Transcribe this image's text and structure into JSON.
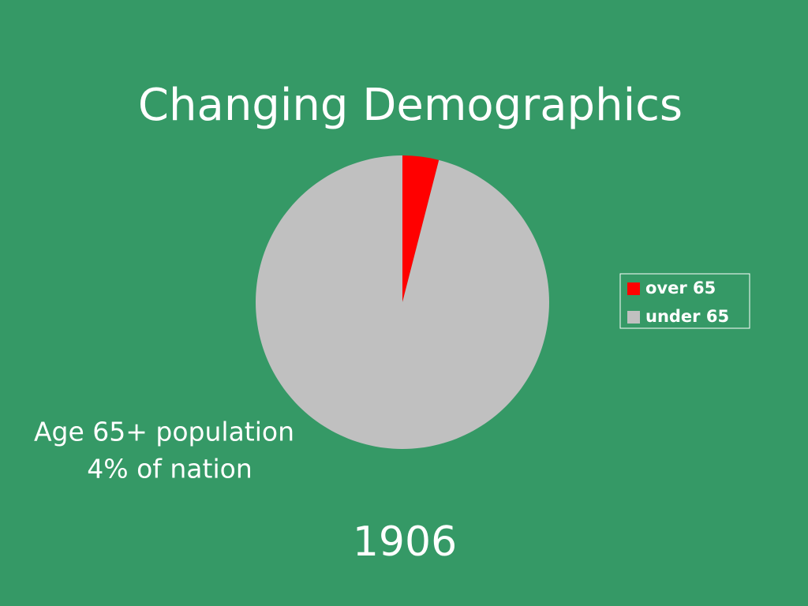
{
  "chart_data": {
    "type": "pie",
    "title": "Changing Demographics",
    "categories": [
      "over 65",
      "under 65"
    ],
    "values": [
      4,
      96
    ],
    "colors": [
      "#ff0000",
      "#c0c0c0"
    ],
    "legend": "right",
    "annotations": [
      "Age 65+ population",
      "4% of nation"
    ],
    "caption": "1906"
  }
}
